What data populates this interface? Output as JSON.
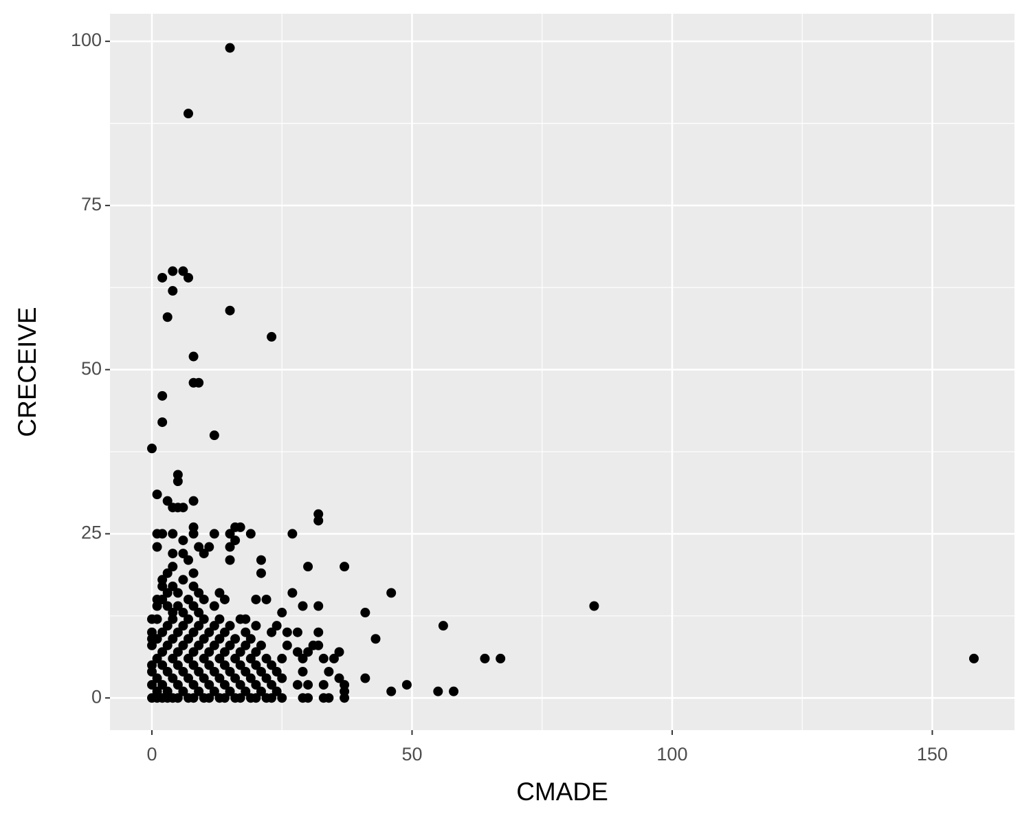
{
  "chart_data": {
    "type": "scatter",
    "x_label": "CMADE",
    "y_label": "CRECEIVE",
    "xlim": [
      -8.06,
      165.8
    ],
    "ylim": [
      -4.9,
      104.2
    ],
    "xticks": [
      0,
      50,
      100,
      150
    ],
    "yticks": [
      0,
      25,
      50,
      75,
      100
    ],
    "grid": true,
    "color": "#000000",
    "x": [
      15,
      7,
      4,
      6,
      2,
      7,
      4,
      3,
      15,
      23,
      8,
      8,
      9,
      2,
      2,
      12,
      0,
      5,
      5,
      1,
      3,
      8,
      4,
      5,
      6,
      32,
      32,
      8,
      16,
      17,
      1,
      2,
      4,
      8,
      12,
      15,
      19,
      27,
      16,
      6,
      1,
      9,
      11,
      15,
      4,
      6,
      10,
      21,
      15,
      30,
      37,
      21,
      7,
      46,
      27,
      13,
      85,
      29,
      32,
      41,
      25,
      56,
      43,
      64,
      67,
      158,
      41,
      49,
      46,
      55,
      58,
      37,
      37,
      37,
      36,
      35,
      33,
      34,
      36,
      33,
      34,
      33,
      32,
      32,
      31,
      30,
      29,
      29,
      28,
      28,
      30,
      29,
      30,
      26,
      28,
      26,
      24,
      22,
      20,
      18,
      0,
      0,
      0,
      0,
      0,
      0,
      0,
      0,
      1,
      1,
      1,
      1,
      1,
      1,
      1,
      1,
      2,
      2,
      2,
      2,
      2,
      2,
      2,
      2,
      3,
      3,
      3,
      3,
      3,
      3,
      3,
      3,
      4,
      4,
      4,
      4,
      4,
      4,
      4,
      4,
      5,
      5,
      5,
      5,
      5,
      5,
      5,
      6,
      6,
      6,
      6,
      6,
      6,
      7,
      7,
      7,
      7,
      7,
      7,
      8,
      8,
      8,
      8,
      8,
      8,
      8,
      8,
      9,
      9,
      9,
      9,
      9,
      9,
      10,
      10,
      10,
      10,
      10,
      10,
      11,
      11,
      11,
      11,
      11,
      12,
      12,
      12,
      12,
      12,
      13,
      13,
      13,
      13,
      13,
      14,
      14,
      14,
      14,
      14,
      14,
      15,
      15,
      15,
      15,
      16,
      16,
      16,
      16,
      17,
      17,
      17,
      17,
      17,
      18,
      18,
      18,
      18,
      19,
      19,
      19,
      19,
      20,
      20,
      20,
      20,
      20,
      21,
      21,
      21,
      22,
      22,
      22,
      23,
      23,
      23,
      23,
      24,
      24,
      25,
      25,
      25
    ],
    "values": [
      99,
      89,
      65,
      65,
      64,
      64,
      62,
      58,
      59,
      55,
      52,
      48,
      48,
      46,
      42,
      40,
      38,
      34,
      33,
      31,
      30,
      30,
      29,
      29,
      29,
      28,
      27,
      26,
      26,
      26,
      25,
      25,
      25,
      25,
      25,
      25,
      25,
      25,
      24,
      24,
      23,
      23,
      23,
      23,
      22,
      22,
      22,
      21,
      21,
      20,
      20,
      19,
      21,
      16,
      16,
      16,
      14,
      14,
      14,
      13,
      13,
      11,
      9,
      6,
      6,
      6,
      3,
      2,
      1,
      1,
      1,
      2,
      1,
      0,
      3,
      6,
      6,
      4,
      7,
      2,
      0,
      0,
      10,
      8,
      8,
      7,
      6,
      4,
      7,
      2,
      2,
      0,
      0,
      10,
      10,
      8,
      11,
      15,
      15,
      12,
      0,
      2,
      4,
      5,
      8,
      9,
      10,
      12,
      0,
      1,
      3,
      6,
      9,
      12,
      14,
      15,
      0,
      2,
      5,
      7,
      10,
      15,
      17,
      18,
      0,
      1,
      4,
      8,
      11,
      14,
      16,
      19,
      0,
      3,
      6,
      9,
      12,
      13,
      17,
      20,
      0,
      2,
      5,
      7,
      10,
      14,
      16,
      1,
      4,
      8,
      11,
      13,
      18,
      0,
      3,
      6,
      9,
      12,
      15,
      0,
      2,
      5,
      7,
      10,
      14,
      17,
      19,
      1,
      4,
      8,
      11,
      13,
      16,
      0,
      3,
      6,
      9,
      12,
      15,
      0,
      2,
      5,
      7,
      10,
      1,
      4,
      8,
      11,
      14,
      0,
      3,
      6,
      9,
      12,
      0,
      2,
      5,
      7,
      10,
      15,
      1,
      4,
      8,
      11,
      0,
      3,
      6,
      9,
      0,
      2,
      5,
      7,
      12,
      1,
      4,
      8,
      10,
      0,
      3,
      6,
      9,
      0,
      2,
      5,
      7,
      11,
      1,
      4,
      8,
      0,
      3,
      6,
      0,
      2,
      5,
      10,
      1,
      4,
      0,
      3,
      6
    ]
  }
}
